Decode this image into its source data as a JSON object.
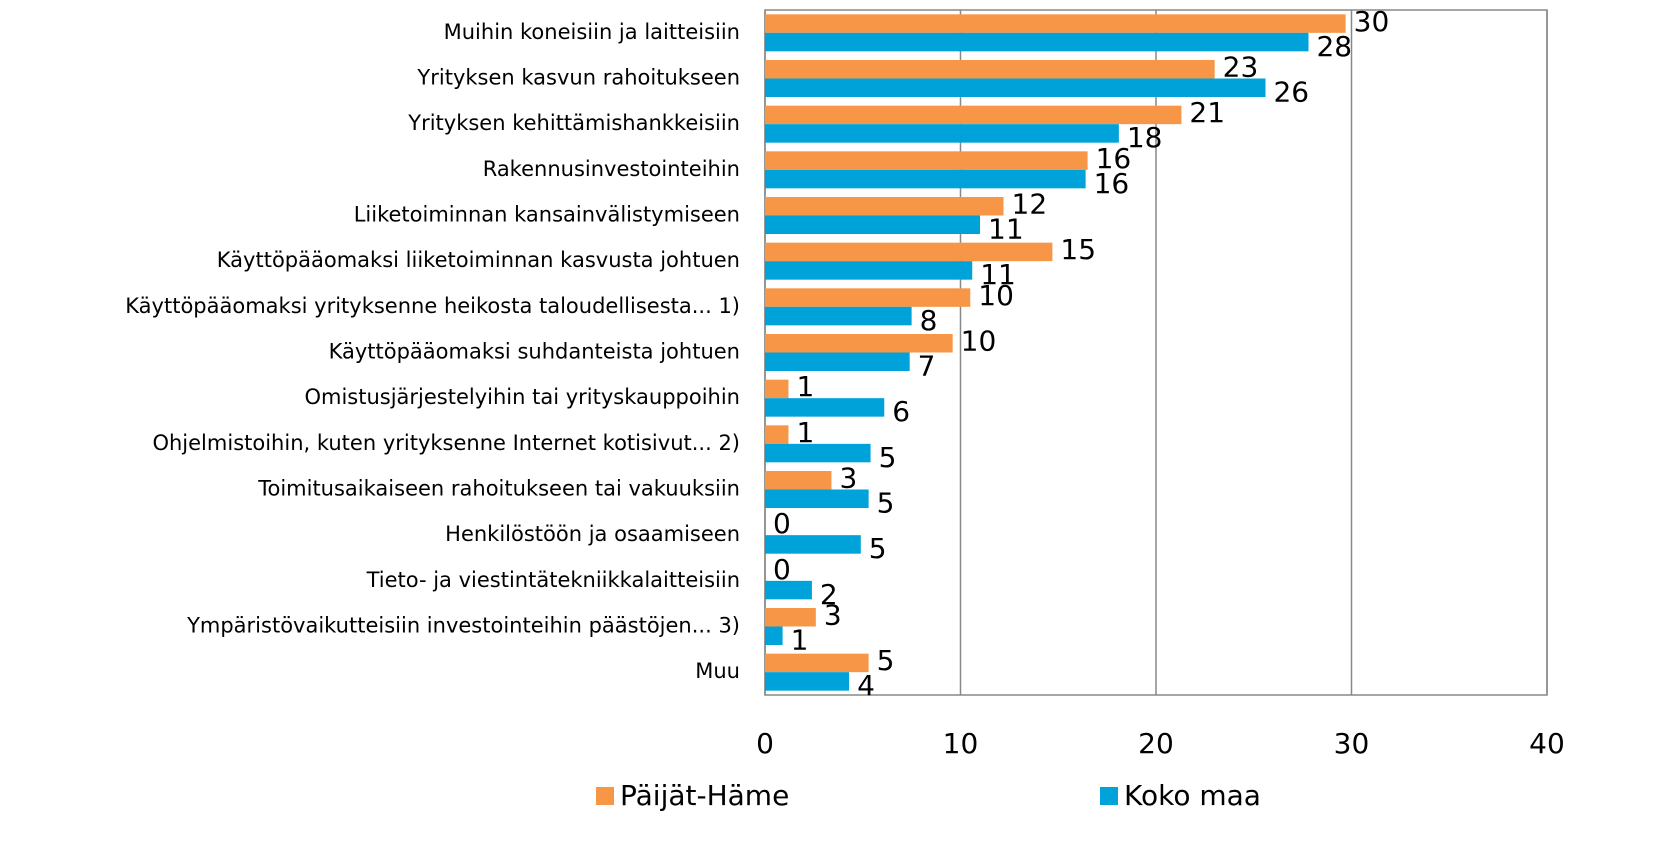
{
  "chart_data": {
    "type": "hbar",
    "categories": [
      "Muihin koneisiin ja laitteisiin",
      "Yrityksen kasvun rahoitukseen",
      "Yrityksen kehittämishankkeisiin",
      "Rakennusinvestointeihin",
      "Liiketoiminnan kansainvälistymiseen",
      "Käyttöpääomaksi liiketoiminnan kasvusta johtuen",
      "Käyttöpääomaksi yrityksenne heikosta taloudellisesta... 1)",
      "Käyttöpääomaksi suhdanteista johtuen",
      "Omistusjärjestelyihin tai yrityskauppoihin",
      "Ohjelmistoihin, kuten yrityksenne Internet kotisivut... 2)",
      "Toimitusaikaiseen rahoitukseen tai vakuuksiin",
      "Henkilöstöön ja osaamiseen",
      "Tieto- ja viestintätekniikkalaitteisiin",
      "Ympäristövaikutteisiin investointeihin päästöjen... 3)",
      "Muu"
    ],
    "series": [
      {
        "name": "Päijät-Häme",
        "color": "#f79646",
        "values": [
          29.7,
          23.0,
          21.3,
          16.5,
          12.2,
          14.7,
          10.5,
          9.6,
          1.2,
          1.2,
          3.4,
          0,
          0,
          2.6,
          5.3
        ],
        "value_labels": [
          "30",
          "23",
          "21",
          "16",
          "12",
          "15",
          "10",
          "10",
          "1",
          "1",
          "3",
          "0",
          "0",
          "3",
          "5"
        ]
      },
      {
        "name": "Koko maa",
        "color": "#00a2da",
        "values": [
          27.8,
          25.6,
          18.1,
          16.4,
          11.0,
          10.6,
          7.5,
          7.4,
          6.1,
          5.4,
          5.3,
          4.9,
          2.4,
          0.9,
          4.3
        ],
        "value_labels": [
          "28",
          "26",
          "18",
          "16",
          "11",
          "11",
          "8",
          "7",
          "6",
          "5",
          "5",
          "5",
          "2",
          "1",
          "4"
        ]
      }
    ],
    "xlim": [
      0,
      40
    ],
    "xticks": [
      0,
      10,
      20,
      30,
      40
    ],
    "grid": true
  }
}
